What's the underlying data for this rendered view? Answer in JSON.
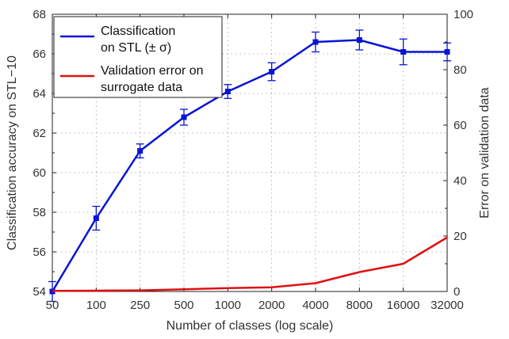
{
  "chart_data": {
    "type": "line",
    "xlabel": "Number of classes (log scale)",
    "ylabel_left": "Classification accuracy on STL−10",
    "ylabel_right": "Error on validation data",
    "x": [
      50,
      100,
      250,
      500,
      1000,
      2000,
      4000,
      8000,
      16000,
      32000
    ],
    "x_tick_labels": [
      "50",
      "100",
      "250",
      "500",
      "1000",
      "2000",
      "4000",
      "8000",
      "16000",
      "32000"
    ],
    "ylim_left": [
      54,
      68
    ],
    "ylim_right": [
      0,
      100
    ],
    "y_left_ticks": [
      "54",
      "56",
      "58",
      "60",
      "62",
      "64",
      "66",
      "68"
    ],
    "y_right_ticks": [
      "0",
      "20",
      "40",
      "60",
      "80",
      "100"
    ],
    "grid": true,
    "legend_position": "top-left",
    "series": [
      {
        "name": "Classification on STL (± σ)",
        "legend_lines": [
          "Classification",
          "on STL (± σ)"
        ],
        "axis": "left",
        "color": "#0a14d4",
        "values": [
          54.0,
          57.7,
          61.1,
          62.8,
          64.1,
          65.1,
          66.6,
          66.7,
          66.1,
          66.1
        ],
        "errors": [
          0.5,
          0.6,
          0.35,
          0.4,
          0.35,
          0.45,
          0.5,
          0.5,
          0.65,
          0.45
        ]
      },
      {
        "name": "Validation error on surrogate data",
        "legend_lines": [
          "Validation error on",
          "surrogate data"
        ],
        "axis": "right",
        "color": "#e01010",
        "values": [
          0.2,
          0.3,
          0.4,
          0.8,
          1.2,
          1.5,
          3.0,
          7.0,
          10.0,
          19.5
        ]
      }
    ]
  }
}
